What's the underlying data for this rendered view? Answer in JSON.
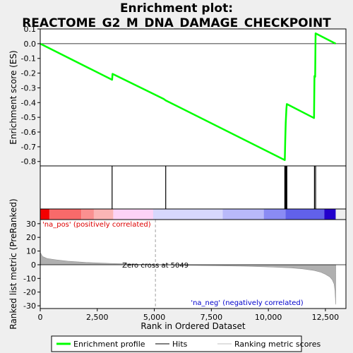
{
  "title_line1": "Enrichment plot:",
  "title_line2": "REACTOME_G2_M_DNA_DAMAGE_CHECKPOINT",
  "chart_data": {
    "type": "line",
    "es_panel": {
      "ylabel": "Enrichment score (ES)",
      "ylim": [
        -0.83,
        0.1
      ],
      "yticks": [
        0.1,
        0.0,
        -0.1,
        -0.2,
        -0.3,
        -0.4,
        -0.5,
        -0.6,
        -0.7,
        -0.8
      ],
      "ytick_labels": [
        "0.1",
        "0.0",
        "-0.1",
        "-0.2",
        "-0.3",
        "-0.4",
        "-0.5",
        "-0.6",
        "-0.7",
        "-0.8"
      ],
      "line_color": "#00ff00",
      "series": [
        {
          "x": [
            0,
            3150,
            3170,
            5410,
            5500,
            10720,
            10740,
            10760,
            10790,
            10810,
            12000,
            12020,
            12050,
            12070,
            12950
          ],
          "y": [
            0.0,
            -0.245,
            -0.205,
            -0.375,
            -0.385,
            -0.79,
            -0.66,
            -0.54,
            -0.44,
            -0.41,
            -0.505,
            -0.22,
            -0.225,
            0.07,
            0.0
          ]
        }
      ]
    },
    "hits": [
      3150,
      5500,
      10720,
      10740,
      10760,
      10790,
      10810,
      12020,
      12070
    ],
    "colorbar": {
      "segments": [
        {
          "start": 0,
          "end": 400,
          "color": "#f40000"
        },
        {
          "start": 400,
          "end": 1800,
          "color": "#f86a6a"
        },
        {
          "start": 1800,
          "end": 2350,
          "color": "#fa9090"
        },
        {
          "start": 2350,
          "end": 3200,
          "color": "#fbb5b5"
        },
        {
          "start": 3200,
          "end": 4950,
          "color": "#fdd3f6"
        },
        {
          "start": 4950,
          "end": 8000,
          "color": "#d7d8fd"
        },
        {
          "start": 8000,
          "end": 9800,
          "color": "#b8b9fa"
        },
        {
          "start": 9800,
          "end": 10750,
          "color": "#8a8bf4"
        },
        {
          "start": 10750,
          "end": 12450,
          "color": "#6161ea"
        },
        {
          "start": 12450,
          "end": 12950,
          "color": "#2200cc"
        }
      ]
    },
    "ranked_panel": {
      "ylabel": "Ranked list metric (PreRanked)",
      "ylim": [
        -32,
        33
      ],
      "yticks": [
        30,
        20,
        10,
        0,
        -10,
        -20,
        -30
      ],
      "ytick_labels": [
        "30",
        "20",
        "10",
        "0",
        "-10",
        "-20",
        "-30"
      ],
      "fill_color": "#b0b0b0",
      "profile": {
        "x": [
          0,
          100,
          300,
          700,
          1200,
          2000,
          3000,
          4000,
          5049,
          6000,
          7500,
          9000,
          10000,
          11000,
          11500,
          12000,
          12300,
          12500,
          12700,
          12800,
          12880,
          12920,
          12950
        ],
        "y": [
          9,
          6,
          4.5,
          3.6,
          2.6,
          1.7,
          1.0,
          0.5,
          0.0,
          -0.3,
          -0.7,
          -1.1,
          -1.6,
          -2.3,
          -3.0,
          -4.2,
          -5.5,
          -7,
          -9,
          -11,
          -14,
          -19,
          -29
        ]
      },
      "label_pos": "'na_pos' (positively correlated)",
      "label_neg": "'na_neg' (negatively correlated)",
      "zero_cross_label": "Zero cross at 5049",
      "zero_cross_x": 5049
    },
    "xlabel": "Rank in Ordered Dataset",
    "xlim": [
      0,
      13400
    ],
    "xticks": [
      0,
      2500,
      5000,
      7500,
      10000,
      12500
    ],
    "xtick_labels": [
      "0",
      "2,500",
      "5,000",
      "7,500",
      "10,000",
      "12,500"
    ],
    "legend": {
      "position": "bottom",
      "items": [
        {
          "label": "Enrichment profile",
          "color": "#00ff00"
        },
        {
          "label": "Hits",
          "color": "#000000"
        },
        {
          "label": "Ranking metric scores",
          "color": "#c0c0c0"
        }
      ]
    }
  }
}
